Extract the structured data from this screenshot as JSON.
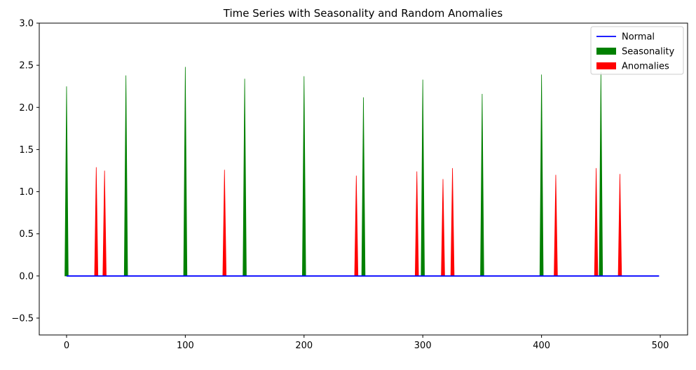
{
  "chart_data": {
    "type": "area",
    "title": "Time Series with Seasonality and Random Anomalies",
    "xlabel": "",
    "ylabel": "",
    "xlim": [
      -23,
      523
    ],
    "ylim": [
      -0.7,
      3.0
    ],
    "x_ticks": [
      0,
      100,
      200,
      300,
      400,
      500
    ],
    "y_ticks": [
      -0.5,
      0.0,
      0.5,
      1.0,
      1.5,
      2.0,
      2.5,
      3.0
    ],
    "y_tick_labels": [
      "−0.5",
      "0.0",
      "0.5",
      "1.0",
      "1.5",
      "2.0",
      "2.5",
      "3.0"
    ],
    "grid": false,
    "legend_placement": "top-right",
    "series": [
      {
        "name": "Normal",
        "kind": "line",
        "color": "#0000ff",
        "x": [
          0,
          499
        ],
        "values": [
          0,
          0
        ]
      },
      {
        "name": "Seasonality",
        "kind": "fill",
        "color": "#008000",
        "spikes": [
          {
            "x": 0,
            "value": 2.25
          },
          {
            "x": 50,
            "value": 2.38
          },
          {
            "x": 100,
            "value": 2.48
          },
          {
            "x": 150,
            "value": 2.34
          },
          {
            "x": 200,
            "value": 2.37
          },
          {
            "x": 250,
            "value": 2.12
          },
          {
            "x": 300,
            "value": 2.33
          },
          {
            "x": 350,
            "value": 2.16
          },
          {
            "x": 400,
            "value": 2.39
          },
          {
            "x": 450,
            "value": 2.42
          }
        ]
      },
      {
        "name": "Anomalies",
        "kind": "fill",
        "color": "#ff0000",
        "spikes": [
          {
            "x": 25,
            "value": 1.29
          },
          {
            "x": 32,
            "value": 1.25
          },
          {
            "x": 133,
            "value": 1.26
          },
          {
            "x": 244,
            "value": 1.19
          },
          {
            "x": 295,
            "value": 1.24
          },
          {
            "x": 317,
            "value": 1.15
          },
          {
            "x": 325,
            "value": 1.28
          },
          {
            "x": 412,
            "value": 1.2
          },
          {
            "x": 446,
            "value": 1.28
          },
          {
            "x": 466,
            "value": 1.21
          }
        ]
      }
    ]
  }
}
